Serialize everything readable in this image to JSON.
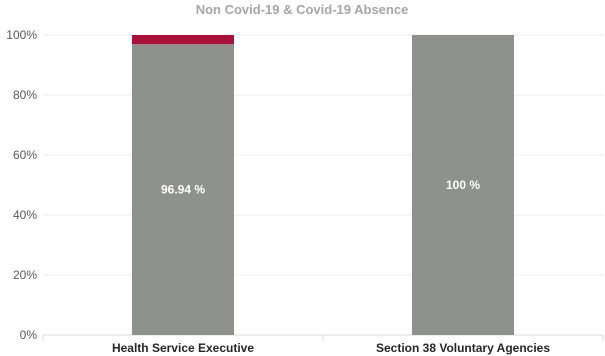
{
  "chart_data": {
    "type": "bar",
    "stacked": true,
    "title": "Non Covid-19 & Covid-19 Absence",
    "xlabel": "",
    "ylabel": "",
    "ylim": [
      0,
      100
    ],
    "y_ticks": [
      "0%",
      "20%",
      "40%",
      "60%",
      "80%",
      "100%"
    ],
    "categories": [
      "Health Service Executive",
      "Section 38 Voluntary Agencies"
    ],
    "series": [
      {
        "values": [
          96.94,
          100
        ],
        "labels": [
          "96.94 %",
          "100 %"
        ],
        "color": "#8f918c"
      },
      {
        "values": [
          3.06,
          0
        ],
        "color": "#a8123a"
      }
    ],
    "grid": true,
    "legend": "none"
  }
}
